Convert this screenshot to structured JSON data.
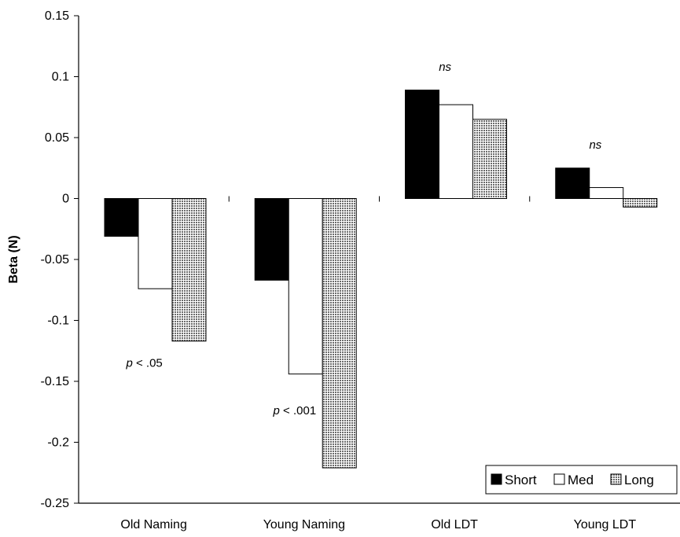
{
  "chart_data": {
    "type": "bar",
    "title": "",
    "xlabel": "",
    "ylabel": "Beta (N)",
    "ylim": [
      -0.25,
      0.15
    ],
    "yticks": [
      0.15,
      0.1,
      0.05,
      0,
      -0.05,
      -0.1,
      -0.15,
      -0.2,
      -0.25
    ],
    "ytick_labels": [
      "0.15",
      "0.1",
      "0.05",
      "0",
      "-0.05",
      "-0.1",
      "-0.15",
      "-0.2",
      "-0.25"
    ],
    "categories": [
      "Old Naming",
      "Young Naming",
      "Old LDT",
      "Young LDT"
    ],
    "series": [
      {
        "name": "Short",
        "fill": "#000000",
        "pattern": "solid",
        "values": [
          -0.031,
          -0.067,
          0.089,
          0.025
        ]
      },
      {
        "name": "Med",
        "fill": "#ffffff",
        "pattern": "none",
        "values": [
          -0.074,
          -0.144,
          0.077,
          0.009
        ]
      },
      {
        "name": "Long",
        "fill": "#bdbdbd",
        "pattern": "dotted",
        "values": [
          -0.117,
          -0.221,
          0.065,
          -0.007
        ]
      }
    ],
    "annotations": [
      {
        "text_prefix": "p",
        "text_rest": " < .05",
        "category": "Old Naming",
        "y": -0.138
      },
      {
        "text_prefix": "p",
        "text_rest": " < .001",
        "category": "Young Naming",
        "y": -0.177
      },
      {
        "text_prefix": "ns",
        "text_rest": "",
        "category": "Old LDT",
        "y": 0.105
      },
      {
        "text_prefix": "ns",
        "text_rest": "",
        "category": "Young LDT",
        "y": 0.041
      }
    ],
    "legend": {
      "placement": "bottom-right"
    },
    "grid": false
  }
}
